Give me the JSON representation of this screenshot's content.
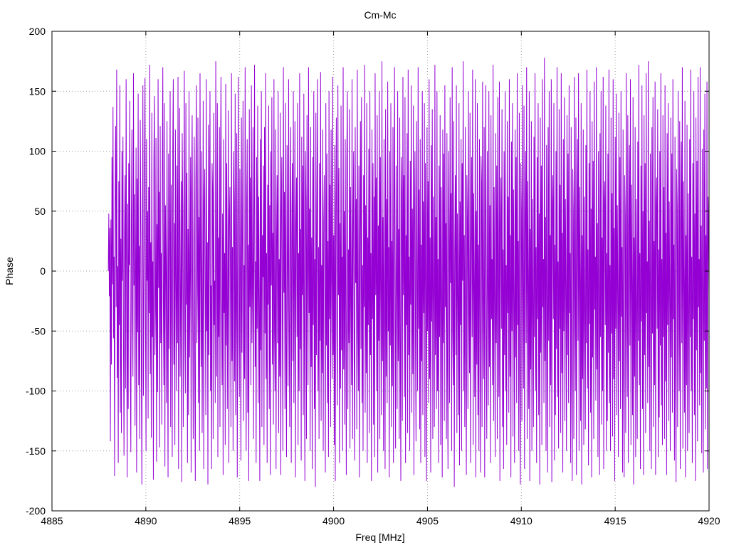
{
  "chart_data": {
    "type": "line",
    "title": "Cm-Mc",
    "xlabel": "Freq [MHz]",
    "ylabel": "Phase",
    "xlim": [
      4885,
      4920
    ],
    "ylim": [
      -200,
      200
    ],
    "xticks": [
      4885,
      4890,
      4895,
      4900,
      4905,
      4910,
      4915,
      4920
    ],
    "yticks": [
      -200,
      -150,
      -100,
      -50,
      0,
      50,
      100,
      150,
      200
    ],
    "grid": true,
    "legend": "none",
    "line_color": "#9400d3",
    "series": [
      {
        "x_start": 4888.0,
        "x_end": 4920.0,
        "x_step": 0.0625,
        "y": [
          0,
          48,
          -21,
          36,
          -142,
          43,
          -78,
          95,
          -11,
          137,
          -56,
          12,
          -171,
          58,
          121,
          -30,
          168,
          -89,
          4,
          -160,
          75,
          -45,
          155,
          -118,
          27,
          -135,
          100,
          -8,
          112,
          -63,
          -154,
          31,
          80,
          -98,
          160,
          -20,
          -172,
          56,
          -115,
          90,
          5,
          142,
          -74,
          -151,
          38,
          118,
          -37,
          -88,
          165,
          -12,
          64,
          -129,
          -5,
          103,
          -168,
          77,
          -51,
          148,
          -95,
          21,
          -140,
          126,
          48,
          -72,
          -178,
          15,
          155,
          -104,
          -26,
          88,
          161,
          -45,
          -150,
          110,
          -8,
          50,
          -123,
          70,
          -35,
          172,
          -86,
          24,
          -139,
          132,
          -55,
          8,
          -174,
          95,
          146,
          -70,
          -32,
          111,
          -159,
          39,
          -101,
          160,
          -14,
          66,
          -147,
          121,
          -60,
          15,
          -128,
          80,
          170,
          -25,
          -95,
          140,
          -163,
          55,
          6,
          -110,
          125,
          -40,
          -172,
          98,
          -65,
          30,
          150,
          -130,
          72,
          -18,
          -155,
          105,
          160,
          -78,
          40,
          -145,
          118,
          -9,
          -100,
          88,
          -60,
          162,
          -165,
          27,
          136,
          -88,
          -22,
          75,
          -176,
          115,
          53,
          -130,
          10,
          167,
          -50,
          -102,
          140,
          -28,
          82,
          -160,
          35,
          -120,
          150,
          -72,
          -5,
          95,
          -168,
          65,
          130,
          -40,
          -140,
          20,
          112,
          -92,
          -175,
          76,
          155,
          -60,
          -18,
          128,
          -110,
          45,
          -150,
          165,
          5,
          -80,
          100,
          -135,
          -32,
          142,
          -165,
          58,
          85,
          -20,
          -120,
          160,
          -50,
          24,
          -178,
          122,
          -70,
          38,
          150,
          -100,
          -12,
          -165,
          90,
          66,
          -140,
          132,
          -45,
          -8,
          -110,
          175,
          12,
          -88,
          140,
          -155,
          28,
          -55,
          120,
          -130,
          80,
          162,
          -25,
          -95,
          48,
          -170,
          110,
          -35,
          15,
          -145,
          156,
          -62,
          90,
          -115,
          -20,
          134,
          -160,
          42,
          70,
          -8,
          -130,
          165,
          -75,
          20,
          -150,
          100,
          58,
          -92,
          148,
          -120,
          -35,
          115,
          -172,
          30,
          162,
          -55,
          -105,
          85,
          -14,
          -158,
          128,
          -68,
          45,
          142,
          -125,
          5,
          -90,
          170,
          -40,
          -150,
          60,
          110,
          -118,
          22,
          -175,
          135,
          -30,
          78,
          -95,
          155,
          -60,
          -10,
          120,
          -140,
          40,
          172,
          -80,
          8,
          -160,
          95,
          -48,
          138,
          -110,
          62,
          -25,
          -175,
          110,
          -66,
          150,
          -130,
          30,
          -5,
          88,
          -145,
          120,
          -52,
          165,
          -90,
          15,
          -160,
          72,
          -28,
          138,
          -115,
          55,
          -170,
          100,
          -12,
          145,
          -78,
          32,
          -128,
          160,
          -45,
          -100,
          118,
          -165,
          25,
          80,
          -60,
          150,
          -135,
          10,
          -88,
          132,
          -170,
          48,
          95,
          -40,
          -150,
          170,
          -18,
          66,
          -115,
          140,
          -70,
          -155,
          105,
          8,
          -96,
          160,
          -38,
          -130,
          58,
          120,
          -160,
          22,
          90,
          -75,
          150,
          -110,
          -5,
          125,
          -172,
          40,
          78,
          -55,
          140,
          -145,
          15,
          -100,
          165,
          -65,
          35,
          -158,
          112,
          -20,
          88,
          -120,
          148,
          -50,
          -175,
          100,
          60,
          -140,
          130,
          -8,
          -95,
          170,
          -35,
          52,
          -150,
          120,
          -80,
          28,
          -165,
          95,
          -45,
          150,
          -115,
          10,
          -180,
          132,
          -70,
          45,
          160,
          -100,
          20,
          -140,
          90,
          -58,
          166,
          -125,
          5,
          -85,
          118,
          -150,
          40,
          80,
          -30,
          -168,
          140,
          -62,
          98,
          -110,
          25,
          -155,
          150,
          -40,
          72,
          -130,
          118,
          -8,
          -90,
          162,
          -70,
          30,
          -145,
          105,
          -175,
          55,
          128,
          -50,
          -112,
          155,
          -20,
          86,
          -160,
          40,
          -98,
          138,
          -66,
          12,
          -150,
          170,
          -82,
          50,
          -128,
          110,
          -35,
          -170,
          95,
          150,
          -115,
          18,
          -60,
          135,
          -148,
          70,
          -22,
          -95,
          160,
          -140,
          42,
          100,
          -75,
          -158,
          120,
          -10,
          60,
          -132,
          168,
          -48,
          -100,
          88,
          -172,
          35,
          125,
          -65,
          145,
          -110,
          5,
          -150,
          80,
          -30,
          172,
          -118,
          55,
          -85,
          140,
          -160,
          28,
          -45,
          102,
          -135,
          150,
          -70,
          15,
          -175,
          118,
          -40,
          90,
          -128,
          62,
          -155,
          165,
          -20,
          78,
          -100,
          130,
          -168,
          38,
          -58,
          150,
          -140,
          95,
          -12,
          -120,
          175,
          -75,
          45,
          -150,
          110,
          -30,
          -165,
          135,
          -88,
          60,
          -110,
          158,
          -50,
          20,
          -172,
          100,
          -62,
          140,
          -130,
          25,
          -96,
          120,
          -160,
          48,
          170,
          -38,
          -148,
          88,
          -8,
          -115,
          150,
          -75,
          35,
          -140,
          128,
          -55,
          -175,
          95,
          66,
          -125,
          162,
          -20,
          80,
          -105,
          145,
          -160,
          30,
          -45,
          115,
          -135,
          168,
          -70,
          12,
          -150,
          92,
          -28,
          155,
          -118,
          52,
          -86,
          138,
          -170,
          40,
          100,
          -62,
          -142,
          125,
          -15,
          -100,
          170,
          -48,
          68,
          -132,
          110,
          -160,
          22,
          -75,
          150,
          -120,
          58,
          -35,
          140,
          -155,
          90,
          -8,
          -175,
          120,
          -50,
          75,
          -110,
          160,
          -90,
          28,
          -168,
          105,
          -42,
          135,
          -140,
          62,
          -18,
          -130,
          172,
          -70,
          45,
          -115,
          150,
          -100,
          10,
          -160,
          88,
          -55,
          130,
          -145,
          70,
          -25,
          -172,
          118,
          -60,
          98,
          -125,
          155,
          -30,
          40,
          -140,
          115,
          -82,
          -165,
          100,
          35,
          -110,
          145,
          -10,
          65,
          -150,
          170,
          -50,
          -95,
          125,
          -180,
          15,
          80,
          -70,
          155,
          -135,
          48,
          -20,
          -120,
          140,
          -162,
          58,
          -45,
          110,
          -150,
          90,
          -8,
          175,
          -100,
          30,
          -130,
          120,
          -66,
          -170,
          80,
          42,
          -115,
          150,
          -38,
          -85,
          132,
          -160,
          20,
          95,
          -55,
          168,
          -145,
          65,
          -12,
          -105,
          160,
          -172,
          50,
          -78,
          140,
          -120,
          22,
          -150,
          110,
          -40,
          -168,
          96,
          74,
          -130,
          158,
          -25,
          -90,
          120,
          -172,
          35,
          155,
          -62,
          -140,
          100,
          -18,
          -112,
          150,
          -80,
          55,
          -160,
          130,
          -40,
          10,
          -95,
          172,
          -125,
          70,
          -30,
          -155,
          115,
          -60,
          88,
          -140,
          145,
          -12,
          -105,
          158,
          -175,
          40,
          78,
          -48,
          135,
          -130,
          18,
          -165,
          100,
          -70,
          150,
          -100,
          5,
          -145,
          125,
          -35,
          62,
          -118,
          160,
          -88,
          30,
          -172,
          108,
          -50,
          140,
          -138,
          68,
          -20,
          -160,
          118,
          -72,
          95,
          -110,
          165,
          -45,
          25,
          -150,
          132,
          -85,
          -178,
          90,
          50,
          -125,
          155,
          -15,
          -98,
          138,
          -165,
          42,
          100,
          -60,
          170,
          -140,
          75,
          -8,
          -115,
          150,
          -175,
          35,
          -82,
          125,
          -150,
          60,
          -25,
          -130,
          112,
          -55,
          165,
          -100,
          20,
          -160,
          95,
          -40,
          140,
          -120,
          48,
          -178,
          128,
          -68,
          88,
          -145,
          160,
          -30,
          10,
          -110,
          178,
          -75,
          45,
          -150,
          105,
          -22,
          -168,
          120,
          -58,
          150,
          -130,
          30,
          -95,
          160,
          -176,
          55,
          80,
          -40,
          140,
          -158,
          22,
          -120,
          100,
          -65,
          170,
          -105,
          8,
          -148,
          135,
          -48,
          72,
          -135,
          165,
          -85,
          32,
          -168,
          110,
          -50,
          145,
          -125,
          60,
          -12,
          -150,
          130,
          -70,
          98,
          -110,
          155,
          -35,
          15,
          -160,
          120,
          -90,
          -175,
          85,
          48,
          -140,
          162,
          -20,
          -100,
          128,
          -170,
          38,
          110,
          -58,
          165,
          -150,
          70,
          -5,
          -125,
          140,
          -178,
          30,
          -90,
          118,
          -145,
          62,
          -28,
          -132,
          105,
          -60,
          168,
          -98,
          18,
          -162,
          90,
          -44,
          150,
          -118,
          52,
          -172,
          125,
          -72,
          92,
          -140,
          158,
          -32,
          12,
          -108,
          170,
          -82,
          40,
          -155,
          100,
          -25,
          -170,
          115,
          -55,
          150,
          -128,
          28,
          -100,
          162,
          -165,
          58,
          75,
          -45,
          138,
          -150,
          15,
          -125,
          98,
          -68,
          168,
          -110,
          5,
          -150,
          128,
          -52,
          65,
          -138,
          160,
          -90,
          36,
          -175,
          112,
          -48,
          148,
          -120,
          55,
          -15,
          -155,
          132,
          -75,
          95,
          -115,
          150,
          -38,
          20,
          -168,
          118,
          -85,
          -172,
          80,
          46,
          -135,
          165,
          -25,
          -105,
          130,
          -160,
          35,
          105,
          -62,
          160,
          -145,
          72,
          -10,
          -120,
          145,
          -178,
          28,
          -88,
          120,
          -155,
          60,
          -30,
          -140,
          108,
          -58,
          172,
          -95,
          15,
          -165,
          88,
          -42,
          155,
          -115,
          50,
          -170,
          130,
          -70,
          90,
          -135,
          165,
          -35,
          8,
          -110,
          175,
          -80,
          42,
          -150,
          98,
          -28,
          -165,
          120,
          -52,
          145,
          -130,
          25,
          -95,
          158,
          -170,
          55,
          78,
          -48,
          135,
          -155,
          18,
          -122,
          100,
          -62,
          165,
          -112,
          10,
          -145,
          130,
          -55,
          70,
          -140,
          155,
          -92,
          32,
          -170,
          115,
          -45,
          140,
          -125,
          58,
          -18,
          -150,
          128,
          -72,
          98,
          -118,
          160,
          -40,
          22,
          -158,
          112,
          -88,
          -176,
          85,
          52,
          -130,
          150,
          -20,
          -100,
          125,
          -165,
          40,
          108,
          -60,
          170,
          -148,
          75,
          -8,
          -118,
          142,
          -172,
          30,
          -95,
          122,
          -150,
          65,
          -28,
          -135,
          110,
          -55,
          168,
          -100,
          12,
          -160,
          90,
          -40,
          150,
          -120,
          48,
          -175,
          128,
          -66,
          92,
          -142,
          162,
          -30,
          10,
          -112,
          170,
          -85,
          38,
          -152,
          102,
          -25,
          -168,
          118,
          -58,
          148,
          -132,
          30,
          -98,
          158,
          -165,
          62,
          35,
          -20
        ]
      }
    ]
  }
}
